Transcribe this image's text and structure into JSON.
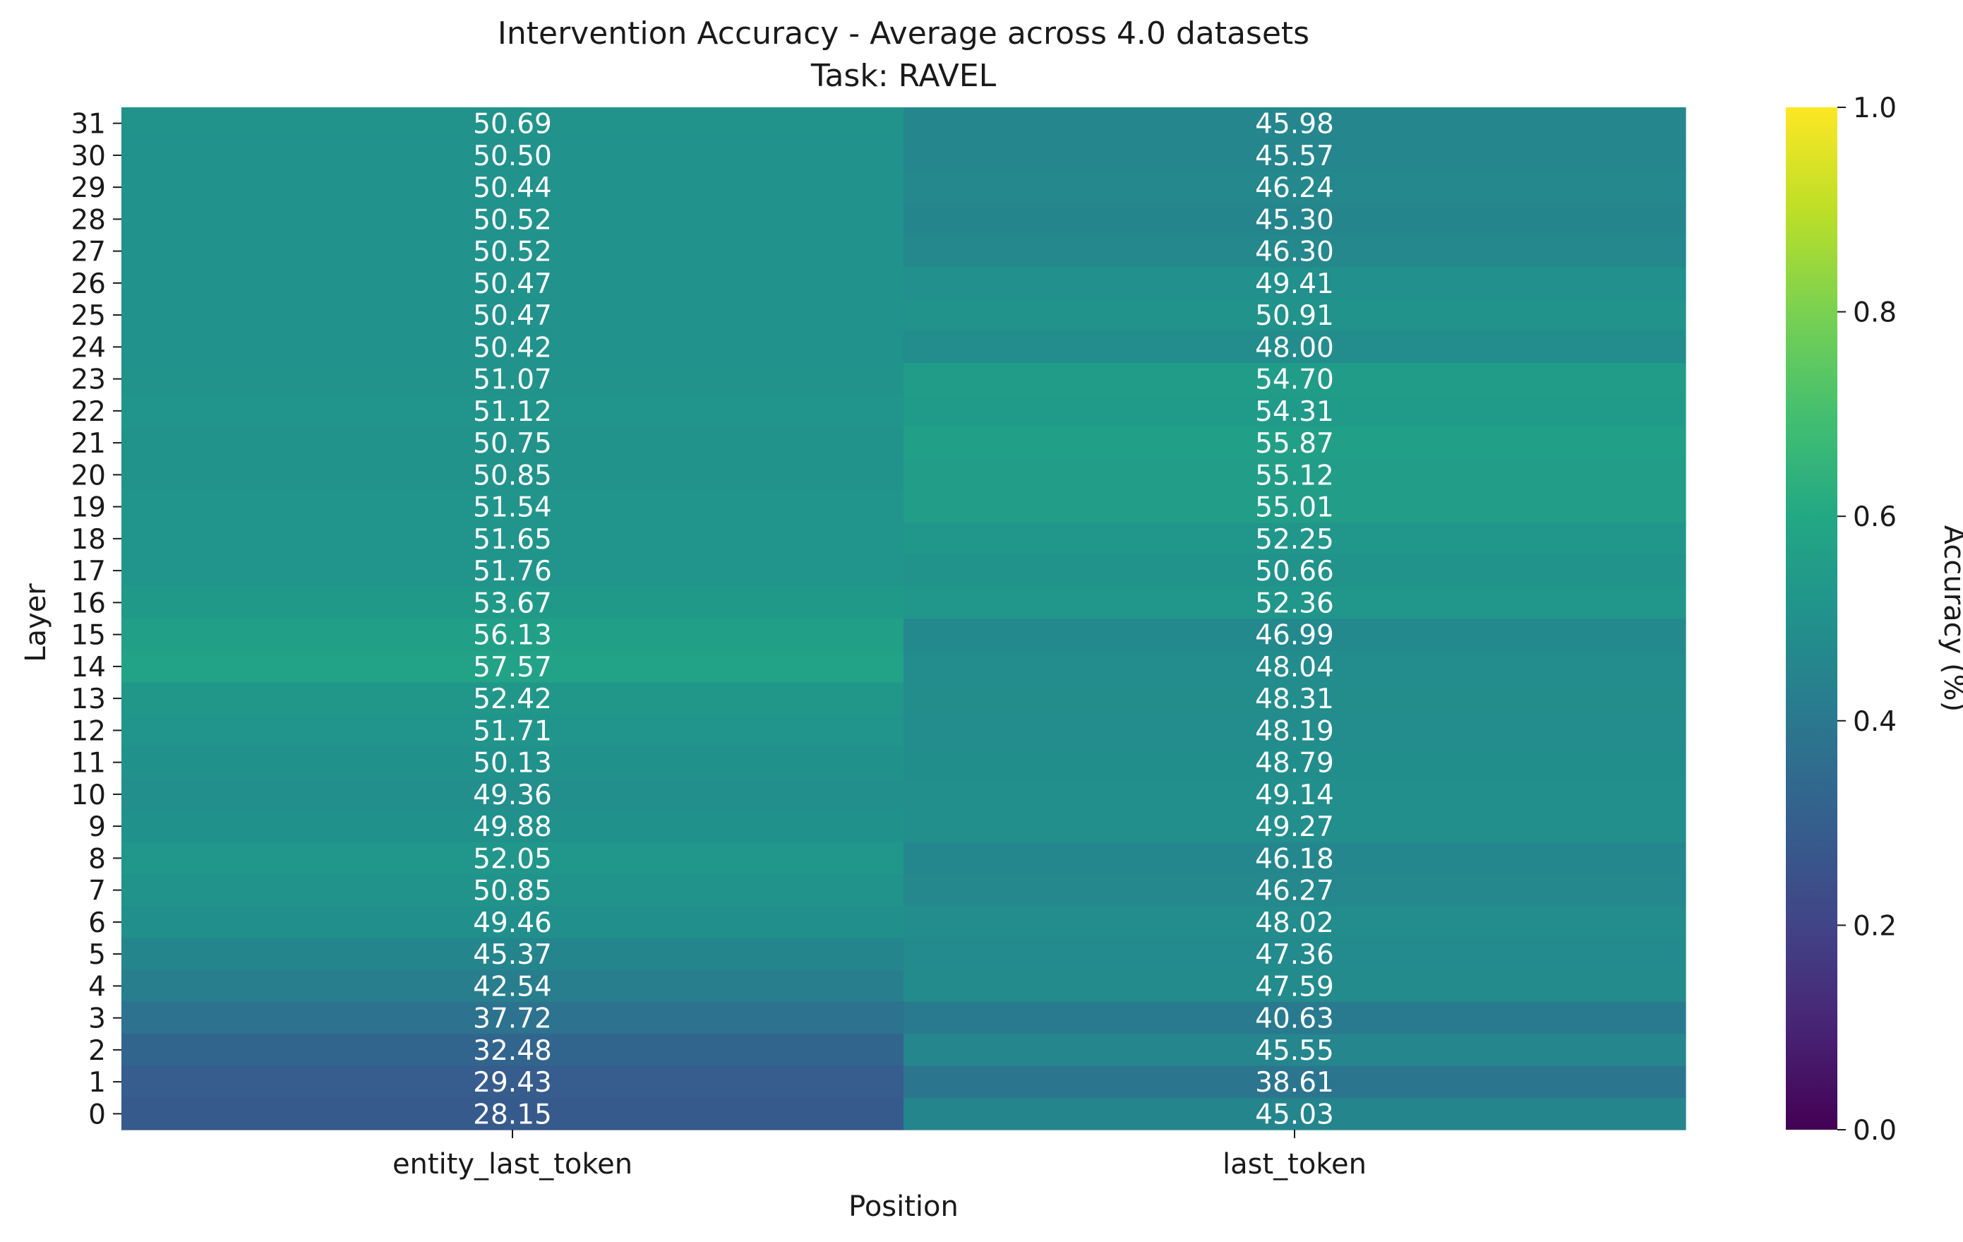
{
  "chart_data": {
    "type": "heatmap",
    "title": "Intervention Accuracy - Average across 4.0 datasets",
    "subtitle": "Task: RAVEL",
    "xlabel": "Position",
    "ylabel": "Layer",
    "x_categories": [
      "entity_last_token",
      "last_token"
    ],
    "y_categories": [
      31,
      30,
      29,
      28,
      27,
      26,
      25,
      24,
      23,
      22,
      21,
      20,
      19,
      18,
      17,
      16,
      15,
      14,
      13,
      12,
      11,
      10,
      9,
      8,
      7,
      6,
      5,
      4,
      3,
      2,
      1,
      0
    ],
    "values": [
      [
        50.69,
        45.98
      ],
      [
        50.5,
        45.57
      ],
      [
        50.44,
        46.24
      ],
      [
        50.52,
        45.3
      ],
      [
        50.52,
        46.3
      ],
      [
        50.47,
        49.41
      ],
      [
        50.47,
        50.91
      ],
      [
        50.42,
        48.0
      ],
      [
        51.07,
        54.7
      ],
      [
        51.12,
        54.31
      ],
      [
        50.75,
        55.87
      ],
      [
        50.85,
        55.12
      ],
      [
        51.54,
        55.01
      ],
      [
        51.65,
        52.25
      ],
      [
        51.76,
        50.66
      ],
      [
        53.67,
        52.36
      ],
      [
        56.13,
        46.99
      ],
      [
        57.57,
        48.04
      ],
      [
        52.42,
        48.31
      ],
      [
        51.71,
        48.19
      ],
      [
        50.13,
        48.79
      ],
      [
        49.36,
        49.14
      ],
      [
        49.88,
        49.27
      ],
      [
        52.05,
        46.18
      ],
      [
        50.85,
        46.27
      ],
      [
        49.46,
        48.02
      ],
      [
        45.37,
        47.36
      ],
      [
        42.54,
        47.59
      ],
      [
        37.72,
        40.63
      ],
      [
        32.48,
        45.55
      ],
      [
        29.43,
        38.61
      ],
      [
        28.15,
        45.03
      ]
    ],
    "colorbar": {
      "label": "Accuracy (%)",
      "range": [
        0.0,
        1.0
      ],
      "ticks": [
        "0.0",
        "0.2",
        "0.4",
        "0.6",
        "0.8",
        "1.0"
      ],
      "colormap": "viridis"
    }
  }
}
